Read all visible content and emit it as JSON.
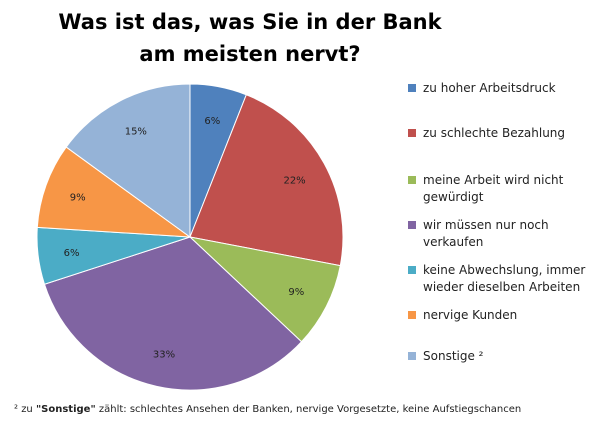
{
  "chart_data": {
    "type": "pie",
    "title": "Was ist das, was Sie in der Bank am meisten nervt?",
    "slices": [
      {
        "label": "zu hoher Arbeitsdruck",
        "value": 6,
        "display": "6%",
        "color": "#4F81BD"
      },
      {
        "label": "zu schlechte Bezahlung",
        "value": 22,
        "display": "22%",
        "color": "#C0504D"
      },
      {
        "label": "meine Arbeit wird nicht gewürdigt",
        "value": 9,
        "display": "9%",
        "color": "#9BBB59"
      },
      {
        "label": "wir müssen nur noch verkaufen",
        "value": 33,
        "display": "33%",
        "color": "#8064A2"
      },
      {
        "label": "keine Abwechslung, immer wieder dieselben Arbeiten",
        "value": 6,
        "display": "6%",
        "color": "#4BACC6"
      },
      {
        "label": "nervige Kunden",
        "value": 9,
        "display": "9%",
        "color": "#F79646"
      },
      {
        "label": "Sonstige ²",
        "value": 15,
        "display": "15%",
        "color": "#95B3D7"
      }
    ],
    "legend_position": "right"
  },
  "footnote": {
    "prefix": "² zu ",
    "bold": "\"Sonstige\"",
    "rest": " zählt: schlechtes Ansehen der Banken, nervige Vorgesetzte, keine Aufstiegschancen"
  }
}
